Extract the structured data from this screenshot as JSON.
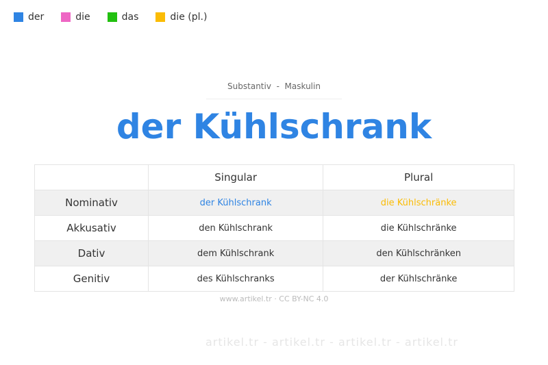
{
  "legend": [
    {
      "label": "der",
      "color": "#2f84e3"
    },
    {
      "label": "die",
      "color": "#ee66c4"
    },
    {
      "label": "das",
      "color": "#22c010"
    },
    {
      "label": "die (pl.)",
      "color": "#fbbc05"
    }
  ],
  "watermark": "artikel.tr - artikel.tr - artikel.tr - artikel.tr",
  "subtitle": "Substantiv  -  Maskulin",
  "title": "der Kühlschrank",
  "table": {
    "headers": [
      "",
      "Singular",
      "Plural"
    ],
    "rows": [
      {
        "case": "Nominativ",
        "singular": "der Kühlschrank",
        "plural": "die Kühlschränke"
      },
      {
        "case": "Akkusativ",
        "singular": "den Kühlschrank",
        "plural": "die Kühlschränke"
      },
      {
        "case": "Dativ",
        "singular": "dem Kühlschrank",
        "plural": "den Kühlschränken"
      },
      {
        "case": "Genitiv",
        "singular": "des Kühlschranks",
        "plural": "der Kühlschränke"
      }
    ]
  },
  "footer": "www.artikel.tr · CC BY-NC 4.0"
}
